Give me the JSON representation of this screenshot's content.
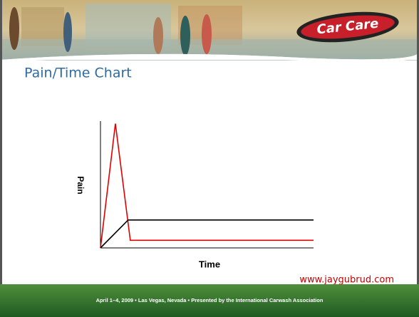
{
  "slide": {
    "logo": "Car Care",
    "url": "www.jaygubrud.com",
    "footer": "April 1–4, 2009  •  Las Vegas, Nevada  •  Presented by the International Carwash Association"
  },
  "chart_data": {
    "type": "line",
    "title": "Pain/Time Chart",
    "x_label": "Time",
    "y_label": "Pain",
    "xlim": [
      0,
      100
    ],
    "ylim": [
      0,
      100
    ],
    "series": [
      {
        "color": "#e00000",
        "x": [
          0,
          7,
          14,
          100
        ],
        "values": [
          0,
          98,
          6,
          6
        ]
      },
      {
        "color": "#000000",
        "x": [
          0,
          13,
          100
        ],
        "values": [
          0,
          22,
          22
        ]
      }
    ]
  }
}
